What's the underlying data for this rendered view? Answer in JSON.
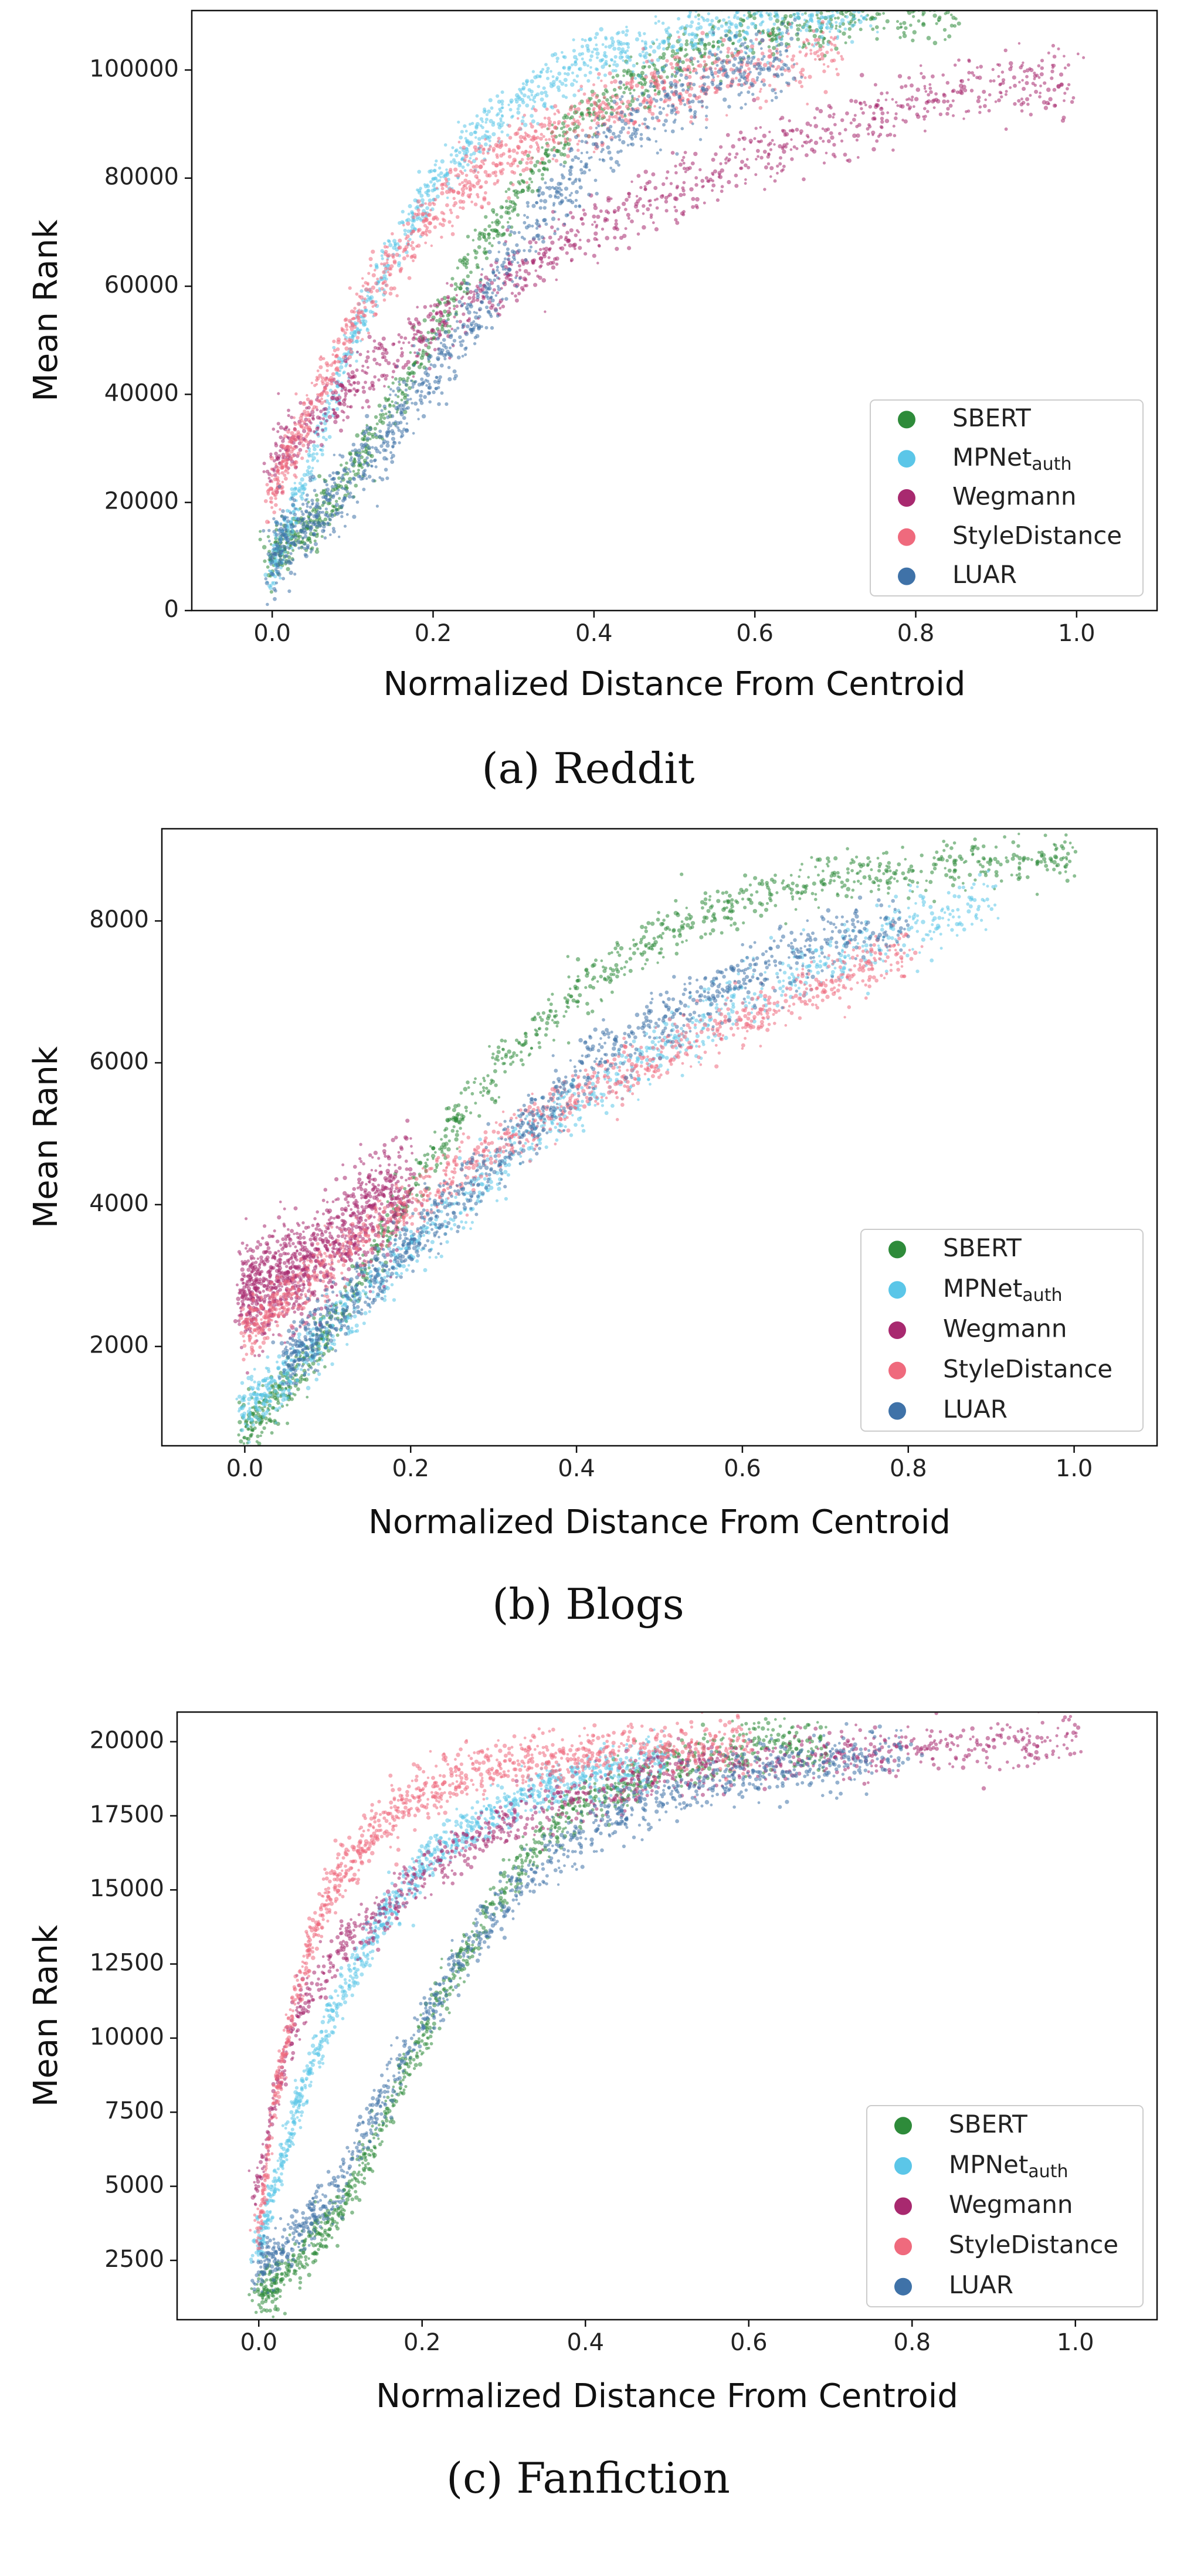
{
  "chart_data": [
    {
      "type": "scatter",
      "caption": "(a) Reddit",
      "xlabel": "Normalized Distance From Centroid",
      "ylabel": "Mean Rank",
      "xlim": [
        -0.1,
        1.1
      ],
      "ylim": [
        0,
        111000
      ],
      "xticks": [
        0.0,
        0.2,
        0.4,
        0.6,
        0.8,
        1.0
      ],
      "xtick_labels": [
        "0.0",
        "0.2",
        "0.4",
        "0.6",
        "0.8",
        "1.0"
      ],
      "yticks": [
        0,
        20000,
        40000,
        60000,
        80000,
        100000
      ],
      "ytick_labels": [
        "0",
        "20000",
        "40000",
        "60000",
        "80000",
        "100000"
      ],
      "grid": false,
      "legend_position": "lower-right",
      "series": [
        {
          "name": "SBERT",
          "color": "#2e8b3a",
          "x": [
            0.0,
            0.05,
            0.1,
            0.15,
            0.2,
            0.25,
            0.3,
            0.35,
            0.4,
            0.5,
            0.6,
            0.7,
            0.8,
            0.85
          ],
          "y": [
            10000,
            16000,
            26000,
            38000,
            52000,
            65000,
            76000,
            86000,
            93000,
            102000,
            107000,
            109500,
            110500,
            111000
          ],
          "spread": 2500
        },
        {
          "name": "MPNet_auth",
          "color": "#5bc6e8",
          "x": [
            0.0,
            0.05,
            0.1,
            0.15,
            0.2,
            0.25,
            0.3,
            0.35,
            0.4,
            0.5,
            0.6,
            0.7,
            0.75
          ],
          "y": [
            8000,
            28000,
            50000,
            66000,
            78000,
            87000,
            93000,
            98000,
            102000,
            106500,
            109000,
            110500,
            111000
          ],
          "spread": 2500
        },
        {
          "name": "Wegmann",
          "color": "#a8296f",
          "x": [
            0.0,
            0.05,
            0.1,
            0.2,
            0.3,
            0.4,
            0.5,
            0.6,
            0.7,
            0.8,
            0.9,
            1.0
          ],
          "y": [
            27000,
            35000,
            42000,
            53000,
            62000,
            71000,
            78000,
            84000,
            89000,
            94000,
            97000,
            99000
          ],
          "spread": 3000
        },
        {
          "name": "StyleDistance",
          "color": "#ef6a7d",
          "x": [
            0.0,
            0.05,
            0.1,
            0.15,
            0.2,
            0.25,
            0.3,
            0.4,
            0.5,
            0.6,
            0.7
          ],
          "y": [
            22000,
            38000,
            53000,
            64000,
            73000,
            80000,
            85000,
            92000,
            97000,
            100500,
            103000
          ],
          "spread": 3000
        },
        {
          "name": "LUAR",
          "color": "#3f72a8",
          "x": [
            0.0,
            0.05,
            0.1,
            0.15,
            0.2,
            0.25,
            0.3,
            0.35,
            0.4,
            0.5,
            0.6,
            0.65
          ],
          "y": [
            10000,
            17000,
            25000,
            34000,
            44000,
            55000,
            66000,
            76000,
            84000,
            95000,
            101000,
            103000
          ],
          "spread": 3500
        }
      ]
    },
    {
      "type": "scatter",
      "caption": "(b) Blogs",
      "xlabel": "Normalized Distance From Centroid",
      "ylabel": "Mean Rank",
      "xlim": [
        -0.1,
        1.1
      ],
      "ylim": [
        600,
        9300
      ],
      "xticks": [
        0.0,
        0.2,
        0.4,
        0.6,
        0.8,
        1.0
      ],
      "xtick_labels": [
        "0.0",
        "0.2",
        "0.4",
        "0.6",
        "0.8",
        "1.0"
      ],
      "yticks": [
        2000,
        4000,
        6000,
        8000
      ],
      "ytick_labels": [
        "2000",
        "4000",
        "6000",
        "8000"
      ],
      "grid": false,
      "legend_position": "lower-right",
      "series": [
        {
          "name": "SBERT",
          "color": "#2e8b3a",
          "x": [
            0.0,
            0.05,
            0.1,
            0.15,
            0.2,
            0.25,
            0.3,
            0.35,
            0.4,
            0.5,
            0.6,
            0.7,
            0.8,
            0.9,
            1.0
          ],
          "y": [
            800,
            1400,
            2200,
            3200,
            4200,
            5100,
            5900,
            6500,
            7000,
            7800,
            8300,
            8600,
            8750,
            8850,
            8900
          ],
          "spread": 180
        },
        {
          "name": "MPNet_auth",
          "color": "#5bc6e8",
          "x": [
            0.0,
            0.05,
            0.1,
            0.15,
            0.2,
            0.25,
            0.3,
            0.35,
            0.4,
            0.5,
            0.6,
            0.7,
            0.8,
            0.9
          ],
          "y": [
            1100,
            1600,
            2200,
            2800,
            3400,
            3950,
            4500,
            5000,
            5450,
            6200,
            6900,
            7400,
            7900,
            8300
          ],
          "spread": 220
        },
        {
          "name": "Wegmann",
          "color": "#a8296f",
          "x": [
            0.0,
            0.05,
            0.1,
            0.15,
            0.2
          ],
          "y": [
            2700,
            3000,
            3400,
            3900,
            4300
          ],
          "spread": 350
        },
        {
          "name": "StyleDistance",
          "color": "#ef6a7d",
          "x": [
            0.0,
            0.05,
            0.1,
            0.15,
            0.2,
            0.25,
            0.3,
            0.4,
            0.5,
            0.6,
            0.7,
            0.8
          ],
          "y": [
            2200,
            2700,
            3100,
            3600,
            4000,
            4400,
            4800,
            5500,
            6100,
            6600,
            7100,
            7600
          ],
          "spread": 200
        },
        {
          "name": "LUAR",
          "color": "#3f72a8",
          "x": [
            0.05,
            0.1,
            0.15,
            0.2,
            0.3,
            0.35,
            0.4,
            0.5,
            0.6,
            0.7,
            0.8
          ],
          "y": [
            1800,
            2300,
            2900,
            3500,
            4600,
            5200,
            5800,
            6600,
            7200,
            7700,
            8000
          ],
          "spread": 220
        }
      ]
    },
    {
      "type": "scatter",
      "caption": "(c) Fanfiction",
      "xlabel": "Normalized Distance From Centroid",
      "ylabel": "Mean Rank",
      "xlim": [
        -0.1,
        1.1
      ],
      "ylim": [
        500,
        21000
      ],
      "xticks": [
        0.0,
        0.2,
        0.4,
        0.6,
        0.8,
        1.0
      ],
      "xtick_labels": [
        "0.0",
        "0.2",
        "0.4",
        "0.6",
        "0.8",
        "1.0"
      ],
      "yticks": [
        2500,
        5000,
        7500,
        10000,
        12500,
        15000,
        17500,
        20000
      ],
      "ytick_labels": [
        "2500",
        "5000",
        "7500",
        "10000",
        "12500",
        "15000",
        "17500",
        "20000"
      ],
      "grid": false,
      "legend_position": "lower-right",
      "series": [
        {
          "name": "SBERT",
          "color": "#2e8b3a",
          "x": [
            0.0,
            0.05,
            0.1,
            0.15,
            0.2,
            0.25,
            0.3,
            0.35,
            0.4,
            0.5,
            0.6,
            0.7
          ],
          "y": [
            1300,
            2500,
            4200,
            7000,
            10000,
            12800,
            15000,
            16800,
            18000,
            19200,
            19700,
            19900
          ],
          "spread": 400
        },
        {
          "name": "MPNet_auth",
          "color": "#5bc6e8",
          "x": [
            0.0,
            0.05,
            0.1,
            0.15,
            0.2,
            0.25,
            0.3,
            0.35,
            0.4,
            0.5
          ],
          "y": [
            3000,
            8000,
            11500,
            14000,
            15800,
            17000,
            17800,
            18400,
            18900,
            19500
          ],
          "spread": 400
        },
        {
          "name": "Wegmann",
          "color": "#a8296f",
          "x": [
            0.0,
            0.02,
            0.05,
            0.08,
            0.1,
            0.15,
            0.2,
            0.25,
            0.3,
            0.4,
            0.5,
            0.7,
            0.9,
            1.0
          ],
          "y": [
            5000,
            8000,
            11000,
            12300,
            13000,
            14300,
            15500,
            16500,
            17200,
            18200,
            19000,
            19600,
            19900,
            20000
          ],
          "spread": 450
        },
        {
          "name": "StyleDistance",
          "color": "#ef6a7d",
          "x": [
            0.0,
            0.02,
            0.05,
            0.08,
            0.1,
            0.15,
            0.2,
            0.25,
            0.3,
            0.4,
            0.5,
            0.6
          ],
          "y": [
            3500,
            8000,
            12000,
            14500,
            15500,
            17200,
            18200,
            18800,
            19200,
            19600,
            19800,
            19900
          ],
          "spread": 450
        },
        {
          "name": "LUAR",
          "color": "#3f72a8",
          "x": [
            0.0,
            0.05,
            0.1,
            0.15,
            0.2,
            0.25,
            0.3,
            0.35,
            0.4,
            0.5,
            0.6,
            0.7,
            0.8
          ],
          "y": [
            2200,
            3500,
            5000,
            8000,
            10500,
            12700,
            14500,
            15900,
            16900,
            18200,
            19000,
            19400,
            19800
          ],
          "spread": 450
        }
      ]
    }
  ]
}
